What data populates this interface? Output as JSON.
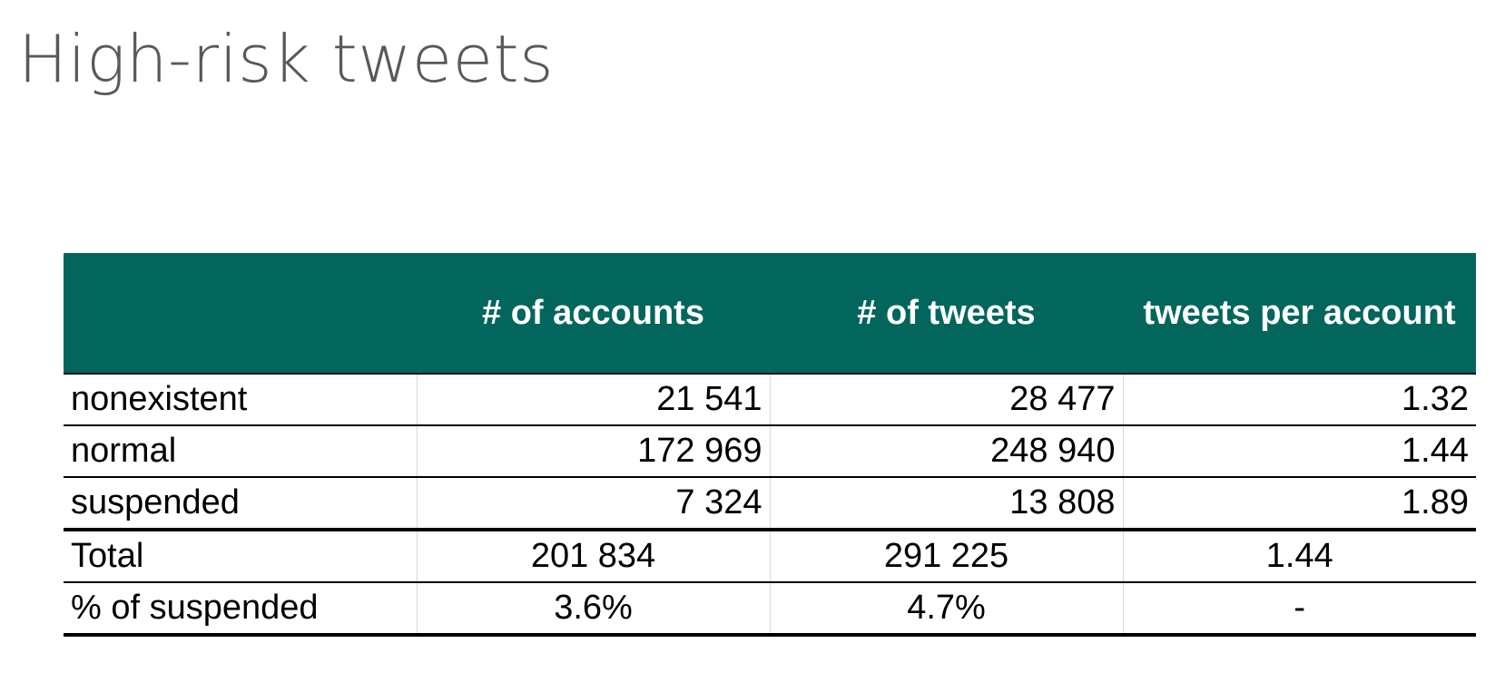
{
  "title": "High-risk tweets",
  "table": {
    "headers": [
      "",
      "# of accounts",
      "# of tweets",
      "tweets per account"
    ],
    "rows": [
      {
        "label": "nonexistent",
        "accounts": "21 541",
        "tweets": "28 477",
        "per_account": "1.32"
      },
      {
        "label": "normal",
        "accounts": "172 969",
        "tweets": "248 940",
        "per_account": "1.44"
      },
      {
        "label": "suspended",
        "accounts": "7 324",
        "tweets": "13 808",
        "per_account": "1.89"
      }
    ],
    "summary": [
      {
        "label": "Total",
        "accounts": "201 834",
        "tweets": "291 225",
        "per_account": "1.44"
      },
      {
        "label": "% of suspended",
        "accounts": "3.6%",
        "tweets": "4.7%",
        "per_account": "-"
      }
    ]
  },
  "colors": {
    "header_bg": "#03665c",
    "header_text": "#ffffff",
    "title_text": "#595959"
  }
}
